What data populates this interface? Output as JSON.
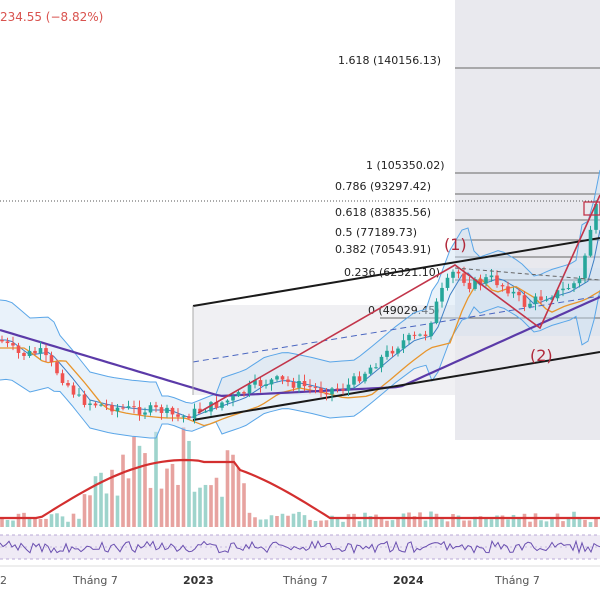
{
  "header": {
    "change_text": "234.55 (−8.82%)"
  },
  "colors": {
    "up": "#26a69a",
    "down": "#ef5350",
    "ma_purple": "#5b3aa8",
    "ma_orange": "#e8952c",
    "bollinger": "#5aa6e8",
    "channel": "#1a1a1a",
    "wave": "#c2354a",
    "volume_ma": "#d32f2f",
    "fib_line": "#666666",
    "shade": "#e8e8ee"
  },
  "chart_data": {
    "type": "candlestick",
    "fib_levels": [
      {
        "ratio": "1.618",
        "price": "140156.13",
        "label": "1.618 (140156.13)"
      },
      {
        "ratio": "1",
        "price": "105350.02",
        "label": "1 (105350.02)"
      },
      {
        "ratio": "0.786",
        "price": "93297.42",
        "label": "0.786 (93297.42)"
      },
      {
        "ratio": "0.618",
        "price": "83835.56",
        "label": "0.618 (83835.56)"
      },
      {
        "ratio": "0.5",
        "price": "77189.73",
        "label": "0.5 (77189.73)"
      },
      {
        "ratio": "0.382",
        "price": "70543.91",
        "label": "0.382 (70543.91)"
      },
      {
        "ratio": "0.236",
        "price": "62321.10",
        "label": "0.236 (62321.10)"
      },
      {
        "ratio": "0",
        "price": "49029.45",
        "label": "0 (49029.45)"
      }
    ],
    "wave_labels": [
      "(1)",
      "(2)"
    ],
    "x_ticks": [
      {
        "label": "2",
        "bold": false
      },
      {
        "label": "Tháng 7",
        "bold": false
      },
      {
        "label": "2023",
        "bold": true
      },
      {
        "label": "Tháng 7",
        "bold": false
      },
      {
        "label": "2024",
        "bold": true
      },
      {
        "label": "Tháng 7",
        "bold": false
      }
    ]
  }
}
